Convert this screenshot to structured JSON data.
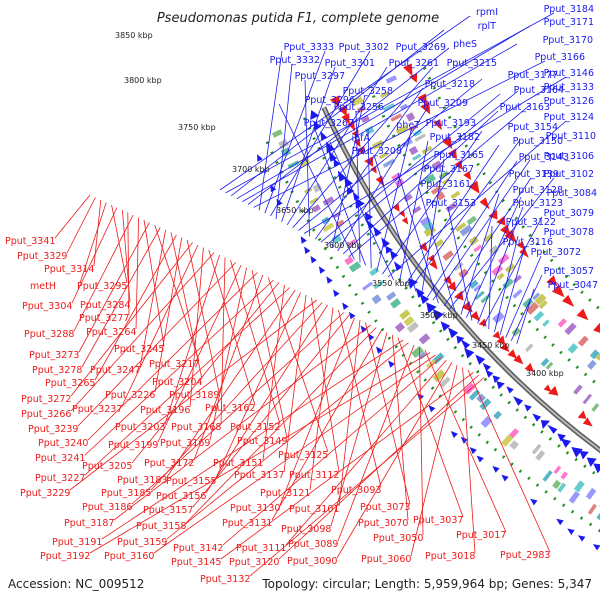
{
  "title": "Pseudomonas putida F1, complete genome",
  "footer": {
    "accession": "Accession: NC_009512",
    "summary": "Topology: circular; Length: 5,959,964 bp; Genes: 5,347"
  },
  "colors": {
    "forward": "#1a1aee",
    "reverse": "#ee1a1a",
    "backbone": "#8c8c8c",
    "gc_dots": "#1f8f1f"
  },
  "scale_labels": [
    "3850 kbp",
    "3800 kbp",
    "3750 kbp",
    "3700 kbp",
    "3650 kbp",
    "3600 kbp",
    "3550 kbp",
    "3500 kbp",
    "3450 kbp",
    "3400 kbp"
  ],
  "forward_genes": [
    "rpmI",
    "Pput_3184",
    "rplT",
    "Pput_3171",
    "Pput_3170",
    "pheS",
    "Pput_3166",
    "Pput_3333",
    "Pput_3302",
    "Pput_3269",
    "Pput_3332",
    "Pput_3301",
    "Pput_3261",
    "Pput_3215",
    "Pput_3177",
    "Pput_3146",
    "Pput_3297",
    "Pput_3218",
    "Pput_3164",
    "Pput_3133",
    "Pput_3258",
    "Pput_3209",
    "Pput_3163",
    "Pput_3126",
    "Pput_3296",
    "Pput_3256",
    "Pput_3267",
    "pheT",
    "Pput_3193",
    "Pput_3154",
    "Pput_3124",
    "ihfA",
    "Pput_3182",
    "Pput_3150",
    "Pput_3110",
    "Pput_3208",
    "Pput_3165",
    "Pput_3143",
    "Pput_3106",
    "Pput_3167",
    "Pput_3139",
    "Pput_3102",
    "Pput_3161",
    "Pput_3128",
    "Pput_3084",
    "Pput_3153",
    "Pput_3123",
    "Pput_3079",
    "Pput_3122",
    "Pput_3078",
    "Pput_3116",
    "Pput_3072",
    "Pput_3057",
    "Pput_3047"
  ],
  "reverse_genes": [
    "Pput_3341",
    "Pput_3329",
    "Pput_3314",
    "metH",
    "Pput_3295",
    "Pput_3304",
    "Pput_3284",
    "Pput_3277",
    "Pput_3288",
    "Pput_3264",
    "Pput_3245",
    "Pput_3273",
    "Pput_3217",
    "Pput_3278",
    "Pput_3247",
    "Pput_3204",
    "Pput_3265",
    "Pput_3226",
    "Pput_3189",
    "Pput_3272",
    "Pput_3237",
    "Pput_3196",
    "Pput_3162",
    "Pput_3266",
    "Pput_3203",
    "Pput_3168",
    "Pput_3152",
    "Pput_3239",
    "Pput_3199",
    "Pput_3169",
    "Pput_3149",
    "Pput_3240",
    "Pput_3172",
    "Pput_3125",
    "Pput_3241",
    "Pput_3205",
    "Pput_3151",
    "Pput_3227",
    "Pput_3183",
    "Pput_3155",
    "Pput_3137",
    "Pput_3112",
    "Pput_3229",
    "Pput_3185",
    "Pput_3156",
    "Pput_3121",
    "Pput_3093",
    "Pput_3186",
    "Pput_3157",
    "Pput_3130",
    "Pput_3101",
    "Pput_3073",
    "Pput_3187",
    "Pput_3158",
    "Pput_3131",
    "Pput_3098",
    "Pput_3070",
    "Pput_3037",
    "Pput_3191",
    "Pput_3159",
    "Pput_3089",
    "Pput_3050",
    "Pput_3017",
    "Pput_3192",
    "Pput_3160",
    "Pput_3142",
    "Pput_3111",
    "Pput_3090",
    "Pput_3060",
    "Pput_3018",
    "Pput_2983",
    "Pput_3145",
    "Pput_3120",
    "Pput_3132"
  ]
}
